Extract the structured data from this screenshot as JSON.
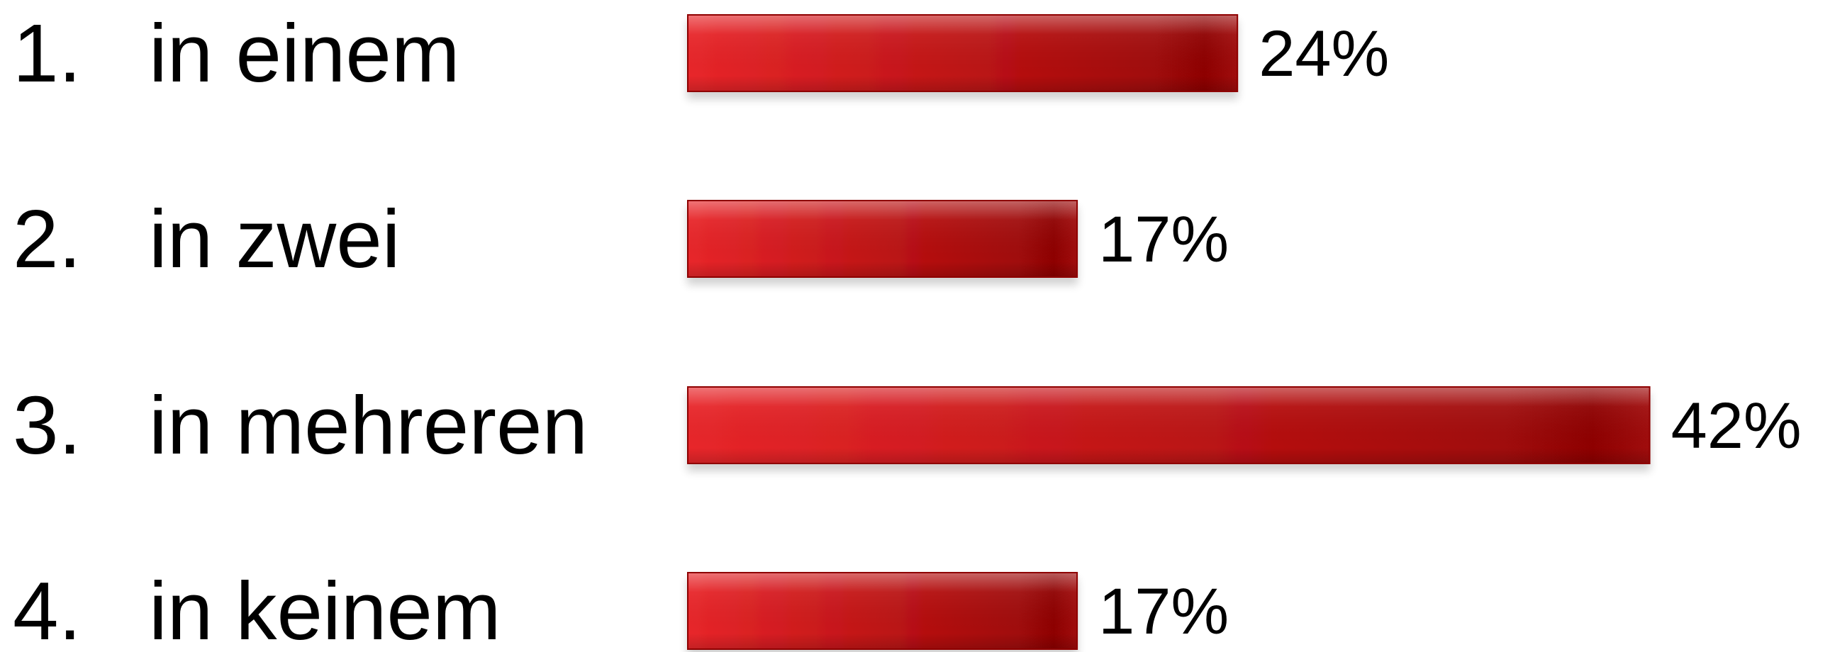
{
  "chart_data": {
    "type": "bar",
    "orientation": "horizontal",
    "categories": [
      "in einem",
      "in zwei",
      "in mehreren",
      "in keinem"
    ],
    "category_numbers": [
      "1.",
      "2.",
      "3.",
      "4."
    ],
    "values": [
      24,
      17,
      42,
      17
    ],
    "value_labels": [
      "24%",
      "17%",
      "42%",
      "17%"
    ],
    "unit": "%",
    "grid": false,
    "legend": "none",
    "colors": {
      "bar_light": "#e8262a",
      "bar_dark": "#a00707",
      "bar_edge": "#8e0606"
    }
  }
}
